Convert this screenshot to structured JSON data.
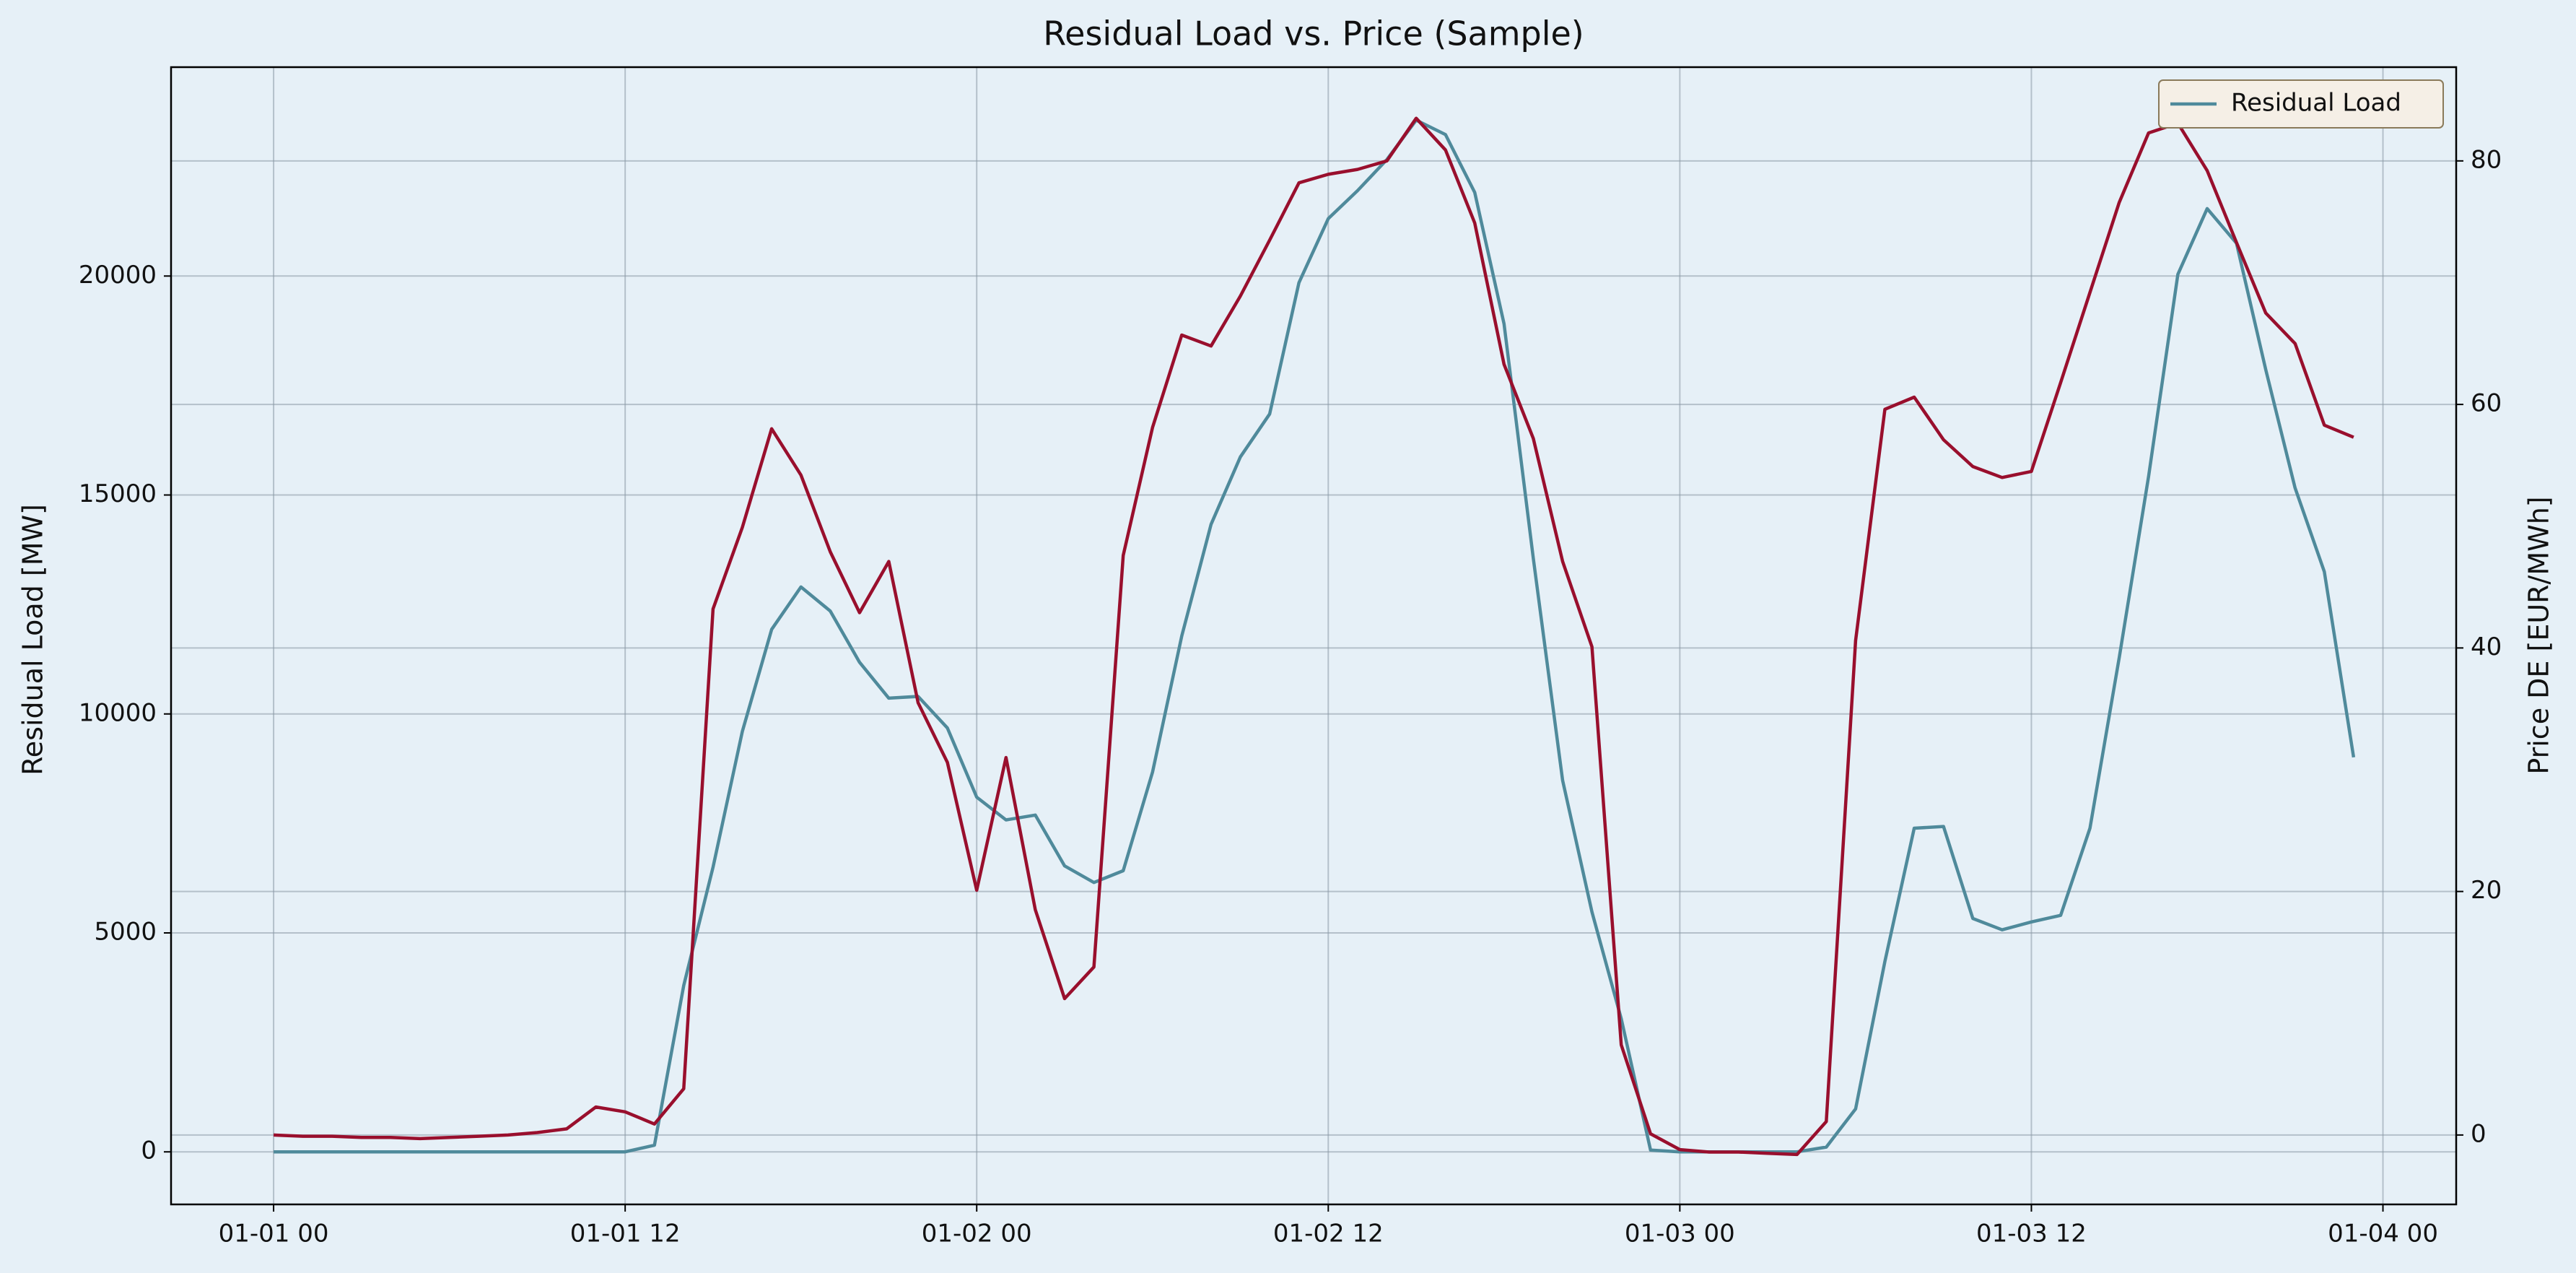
{
  "chart_data": {
    "type": "line",
    "title": "Residual Load vs. Price (Sample)",
    "y_label": "Residual Load [MW]",
    "y2_label": "Price DE [EUR/MWh]",
    "x": [
      0,
      1,
      2,
      3,
      4,
      5,
      6,
      7,
      8,
      9,
      10,
      11,
      12,
      13,
      14,
      15,
      16,
      17,
      18,
      19,
      20,
      21,
      22,
      23,
      24,
      25,
      26,
      27,
      28,
      29,
      30,
      31,
      32,
      33,
      34,
      35,
      36,
      37,
      38,
      39,
      40,
      41,
      42,
      43,
      44,
      45,
      46,
      47,
      48,
      49,
      50,
      51,
      52,
      53,
      54,
      55,
      56,
      57,
      58,
      59,
      60,
      61,
      62,
      63,
      64,
      65,
      66,
      67,
      68,
      69,
      70,
      71
    ],
    "xlim": [
      -3.5,
      74.5
    ],
    "xticks": [
      {
        "value": 0,
        "label": "01-01 00"
      },
      {
        "value": 12,
        "label": "01-01 12"
      },
      {
        "value": 24,
        "label": "01-02 00"
      },
      {
        "value": 36,
        "label": "01-02 12"
      },
      {
        "value": 48,
        "label": "01-03 00"
      },
      {
        "value": 60,
        "label": "01-03 12"
      },
      {
        "value": 72,
        "label": "01-04 00"
      }
    ],
    "ylim": [
      -1200,
      24770
    ],
    "yticks": [
      0,
      5000,
      10000,
      15000,
      20000
    ],
    "y2lim": [
      -5.7,
      87.7
    ],
    "y2ticks": [
      0,
      20,
      40,
      60,
      80
    ],
    "grid": true,
    "legend": "upper right",
    "series": [
      {
        "name": "Residual Load",
        "color": "#4f8a9b",
        "values": [
          0,
          0,
          0,
          0,
          0,
          0,
          0,
          0,
          0,
          0,
          0,
          0,
          0,
          150,
          3800,
          6500,
          9600,
          11930,
          12900,
          12350,
          11180,
          10360,
          10400,
          9680,
          8100,
          7580,
          7690,
          6530,
          6150,
          6420,
          8670,
          11780,
          14330,
          15870,
          16850,
          19850,
          21310,
          21950,
          22660,
          23560,
          23230,
          21910,
          18910,
          13550,
          8480,
          5480,
          3040,
          40,
          0,
          0,
          0,
          0,
          0,
          110,
          980,
          4350,
          7390,
          7430,
          5330,
          5070,
          5250,
          5400,
          7390,
          11290,
          15420,
          20040,
          21540,
          20750,
          17860,
          15160,
          13250,
          9010
        ]
      },
      {
        "color": "#990f2d",
        "axis": "y2",
        "values": [
          0.0,
          -0.1,
          -0.1,
          -0.2,
          -0.2,
          -0.3,
          -0.2,
          -0.1,
          0.0,
          0.2,
          0.5,
          2.3,
          1.9,
          0.9,
          3.8,
          43.2,
          49.9,
          58.0,
          54.2,
          47.9,
          42.9,
          47.1,
          35.5,
          30.6,
          20.1,
          31.0,
          18.5,
          11.2,
          13.8,
          47.6,
          58.1,
          65.7,
          64.8,
          68.9,
          73.5,
          78.2,
          78.9,
          79.3,
          80.0,
          83.5,
          80.9,
          74.9,
          63.3,
          57.2,
          47.1,
          40.1,
          7.4,
          0.1,
          -1.2,
          -1.4,
          -1.4,
          -1.5,
          -1.6,
          1.1,
          40.6,
          59.6,
          60.6,
          57.1,
          54.9,
          54.0,
          54.5,
          61.8,
          69.2,
          76.6,
          82.3,
          83.1,
          79.2,
          73.3,
          67.5,
          65.0,
          58.3,
          57.3
        ]
      }
    ]
  }
}
